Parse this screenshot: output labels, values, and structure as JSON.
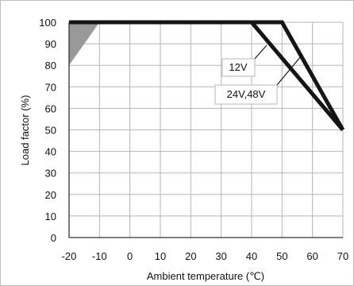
{
  "chart_data": {
    "type": "line",
    "title": "",
    "xlabel": "Ambient temperature (℃)",
    "ylabel": "Load factor (%)",
    "xlim": [
      -20,
      70
    ],
    "ylim": [
      0,
      100
    ],
    "x_ticks": [
      -20,
      -10,
      0,
      10,
      20,
      30,
      40,
      50,
      60,
      70
    ],
    "y_ticks": [
      0,
      10,
      20,
      30,
      40,
      50,
      60,
      70,
      80,
      90,
      100
    ],
    "grid": true,
    "colors": {
      "grid": "#b5b5b5",
      "axis": "#333333",
      "series": "#151515",
      "shaded_region": "#999999"
    },
    "series": [
      {
        "name": "12V",
        "x": [
          -20,
          40,
          70
        ],
        "y": [
          100,
          100,
          50
        ]
      },
      {
        "name": "24V,48V",
        "x": [
          -20,
          50,
          70
        ],
        "y": [
          100,
          100,
          50
        ]
      }
    ],
    "shaded_region": {
      "x": [
        -20,
        -10,
        -20
      ],
      "y": [
        100,
        100,
        80
      ]
    },
    "annotations": [
      {
        "text": "12V",
        "series": "12V"
      },
      {
        "text": "24V,48V",
        "series": "24V,48V"
      }
    ]
  }
}
